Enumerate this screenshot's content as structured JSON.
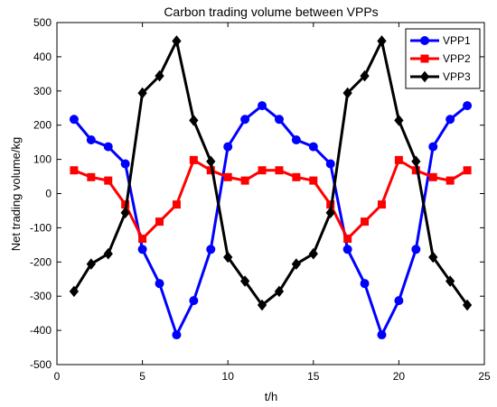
{
  "chart_data": {
    "type": "line",
    "title": "Carbon trading volume between VPPs",
    "xlabel": "t/h",
    "ylabel": "Net trading volume/kg",
    "xlim": [
      0,
      25
    ],
    "ylim": [
      -500,
      500
    ],
    "xticks": [
      0,
      5,
      10,
      15,
      20,
      25
    ],
    "yticks": [
      -500,
      -400,
      -300,
      -200,
      -100,
      0,
      100,
      200,
      300,
      400,
      500
    ],
    "grid": false,
    "legend_position": "top-right",
    "x": [
      1,
      2,
      3,
      4,
      5,
      6,
      7,
      8,
      9,
      10,
      11,
      12,
      13,
      14,
      15,
      16,
      17,
      18,
      19,
      20,
      21,
      22,
      23,
      24
    ],
    "series": [
      {
        "name": "VPP1",
        "color": "#0000ff",
        "marker": "circle",
        "values": [
          217,
          157,
          137,
          87,
          -163,
          -263,
          -413,
          -313,
          -163,
          137,
          217,
          257,
          217,
          157,
          137,
          87,
          -163,
          -263,
          -413,
          -313,
          -163,
          137,
          217,
          257
        ]
      },
      {
        "name": "VPP2",
        "color": "#ff0000",
        "marker": "square",
        "values": [
          68,
          48,
          38,
          -32,
          -132,
          -82,
          -32,
          98,
          68,
          48,
          38,
          68,
          68,
          48,
          38,
          -32,
          -132,
          -82,
          -32,
          98,
          68,
          48,
          38,
          68
        ]
      },
      {
        "name": "VPP3",
        "color": "#000000",
        "marker": "diamond",
        "values": [
          -286,
          -206,
          -176,
          -56,
          294,
          344,
          446,
          214,
          94,
          -186,
          -256,
          -326,
          -286,
          -206,
          -176,
          -56,
          294,
          344,
          446,
          214,
          94,
          -186,
          -256,
          -326
        ]
      }
    ]
  }
}
